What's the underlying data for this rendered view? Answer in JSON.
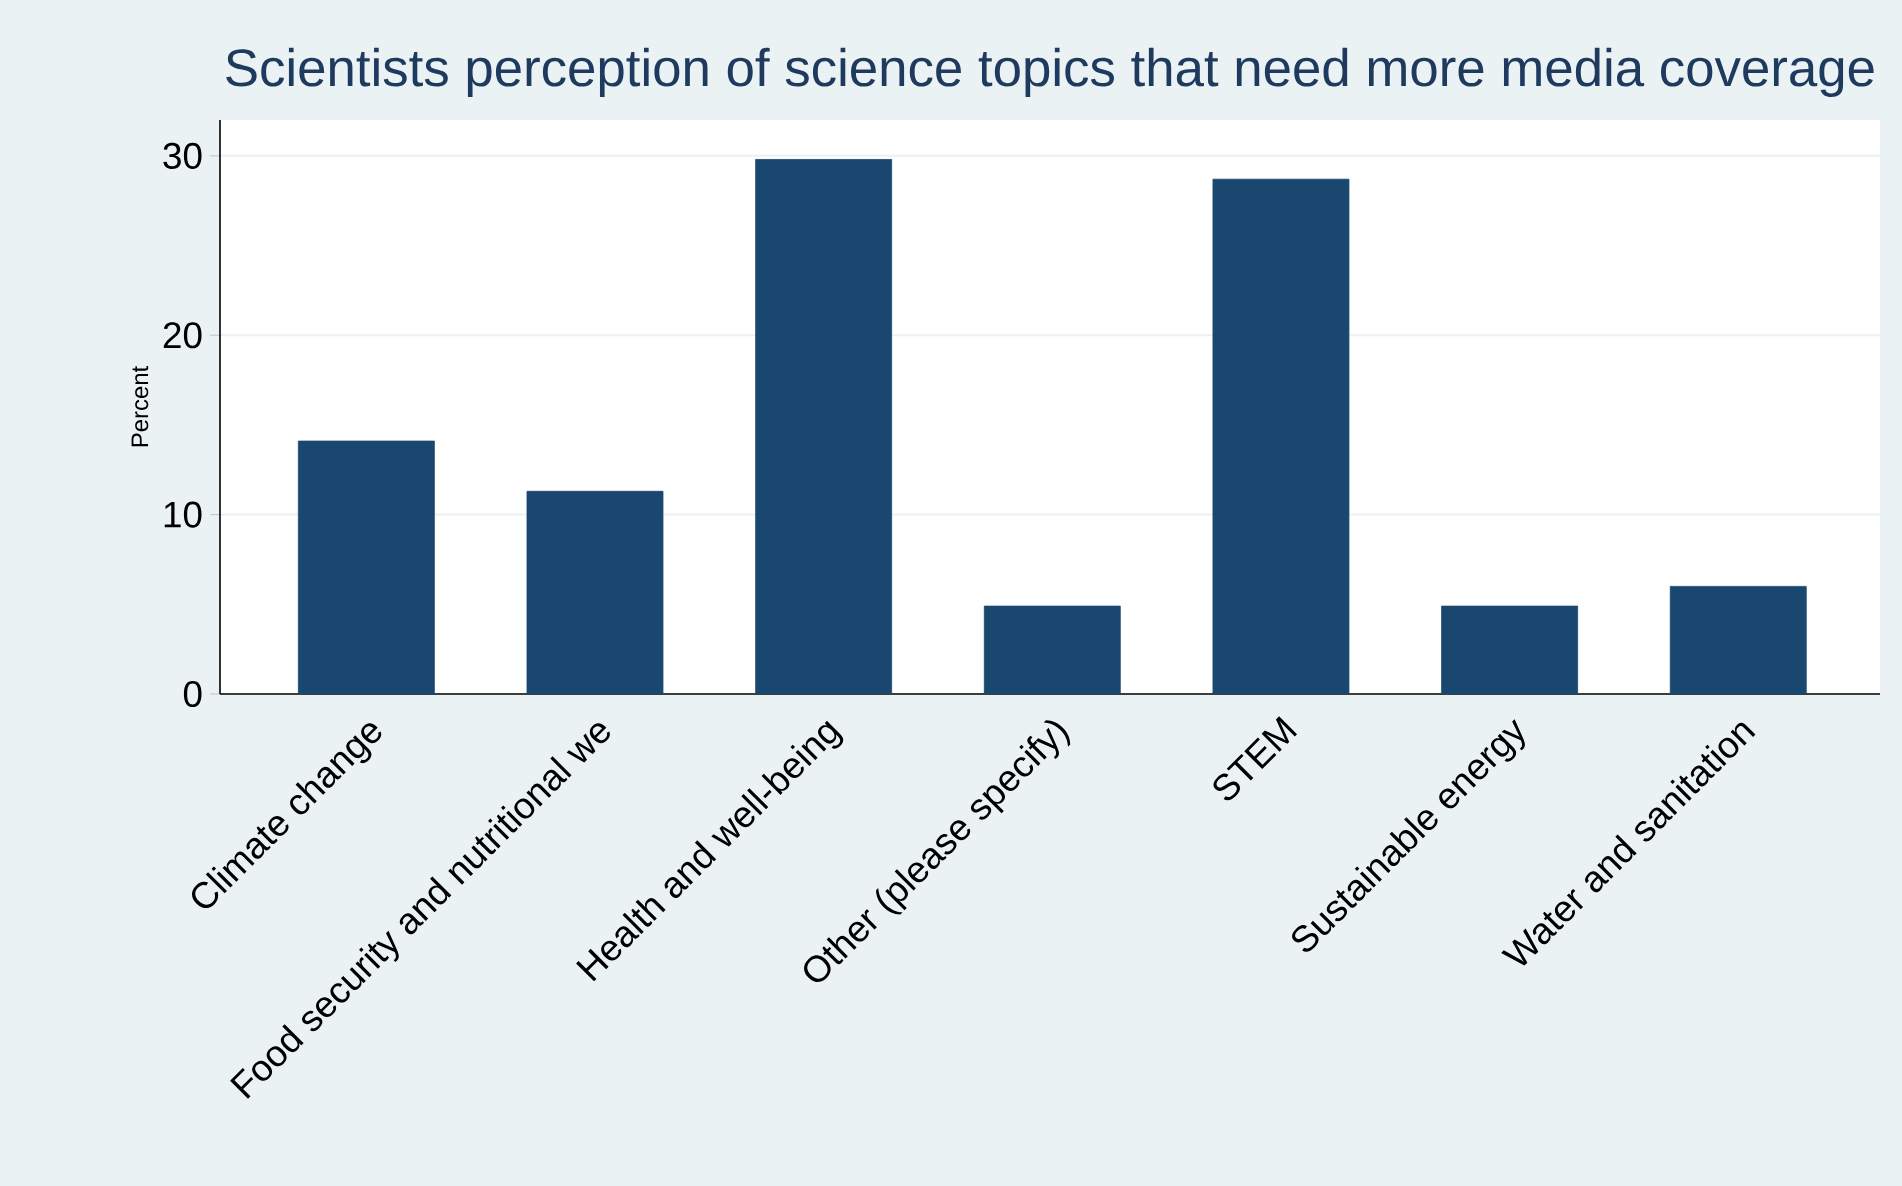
{
  "chart_data": {
    "type": "bar",
    "title": "Scientists perception of science topics that need more media coverage",
    "ylabel": "Percent",
    "categories": [
      "Climate change",
      "Food security and nutritional we",
      "Health and well-being",
      "Other (please specify)",
      "STEM",
      "Sustainable energy",
      "Water and sanitation"
    ],
    "values": [
      14.1,
      11.3,
      29.8,
      4.9,
      28.7,
      4.9,
      6.0
    ],
    "color": "#1a476f",
    "ylim": [
      0,
      32
    ],
    "yticks": [
      0,
      10,
      20,
      30
    ],
    "grid": "y"
  }
}
